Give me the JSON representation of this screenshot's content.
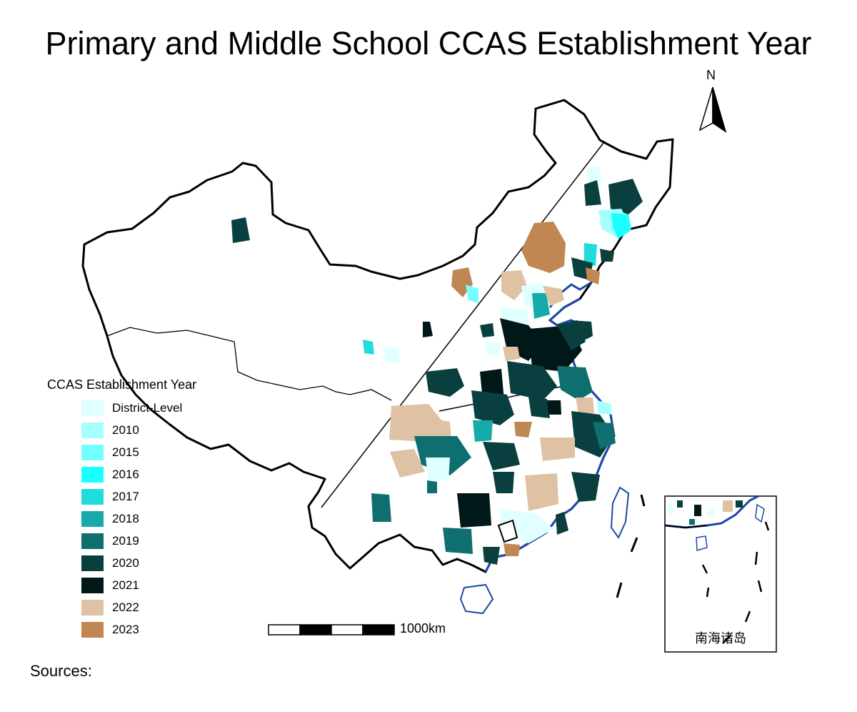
{
  "title": "Primary and Middle School CCAS Establishment Year",
  "north_arrow_label": "N",
  "scale_bar_label": "1000km",
  "inset_label": "南海诸岛",
  "sources_label": "Sources:",
  "legend": {
    "title": "CCAS Establishment Year",
    "items": [
      {
        "label": "District-Level",
        "color": "#e0ffff"
      },
      {
        "label": "2010",
        "color": "#a6ffff"
      },
      {
        "label": "2015",
        "color": "#73ffff"
      },
      {
        "label": "2016",
        "color": "#1affff"
      },
      {
        "label": "2017",
        "color": "#22dcdc"
      },
      {
        "label": "2018",
        "color": "#17aaaa"
      },
      {
        "label": "2019",
        "color": "#0f6f6f"
      },
      {
        "label": "2020",
        "color": "#0a3f3f"
      },
      {
        "label": "2021",
        "color": "#001818"
      },
      {
        "label": "2022",
        "color": "#dfc2a4"
      },
      {
        "label": "2023",
        "color": "#c08752"
      }
    ]
  },
  "colors": {
    "coastline": "#1a49a8",
    "border": "#000000"
  }
}
